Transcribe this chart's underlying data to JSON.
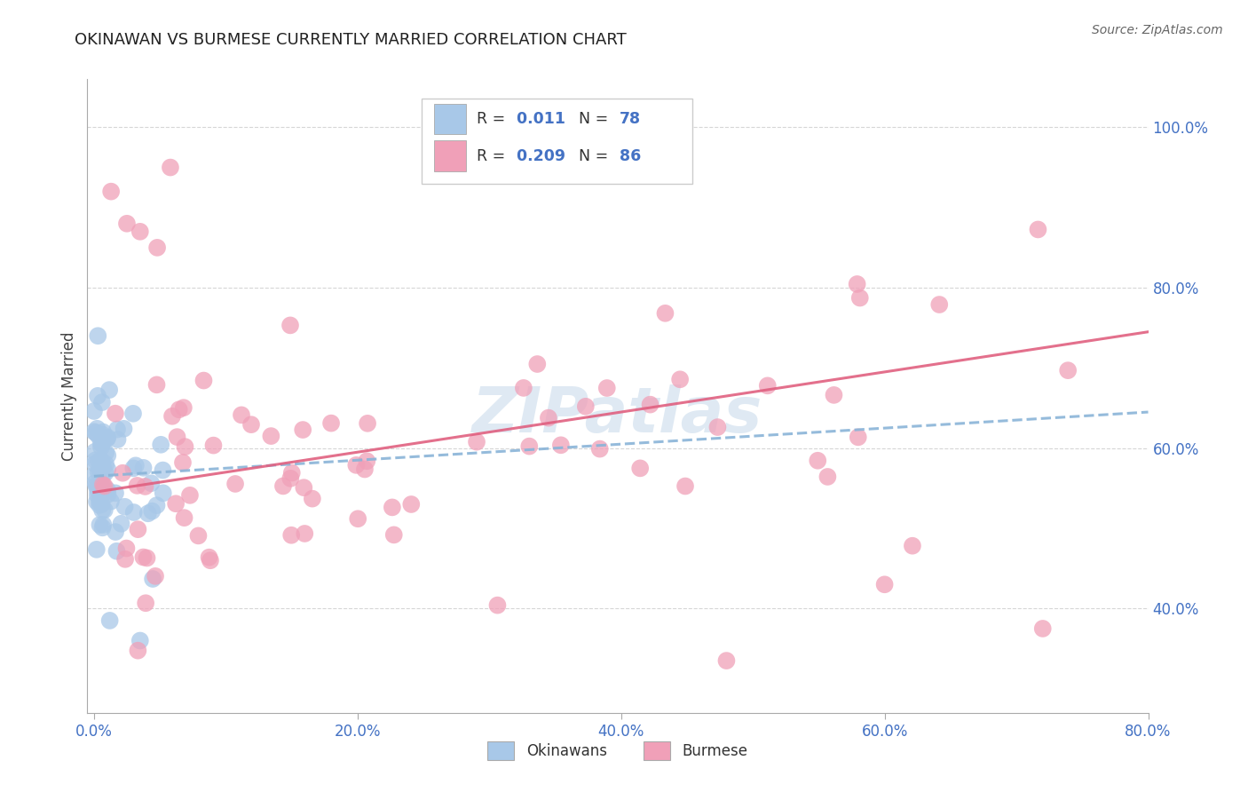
{
  "title": "OKINAWAN VS BURMESE CURRENTLY MARRIED CORRELATION CHART",
  "source": "Source: ZipAtlas.com",
  "ylabel_label": "Currently Married",
  "watermark": "ZIPatlas",
  "xlim": [
    -0.005,
    0.8
  ],
  "ylim": [
    0.27,
    1.06
  ],
  "xticks": [
    0.0,
    0.2,
    0.4,
    0.6,
    0.8
  ],
  "xtick_labels": [
    "0.0%",
    "20.0%",
    "40.0%",
    "60.0%",
    "80.0%"
  ],
  "ytick_values": [
    0.4,
    0.6,
    0.8,
    1.0
  ],
  "ytick_labels": [
    "40.0%",
    "60.0%",
    "80.0%",
    "100.0%"
  ],
  "okinawan_color": "#a8c8e8",
  "burmese_color": "#f0a0b8",
  "okinawan_line_color": "#8ab4d8",
  "burmese_line_color": "#e06080",
  "background_color": "#ffffff",
  "grid_color": "#cccccc",
  "legend_r_ok": "0.011",
  "legend_n_ok": "78",
  "legend_r_bur": "0.209",
  "legend_n_bur": "86",
  "ok_trend_x": [
    0.0,
    0.8
  ],
  "ok_trend_y": [
    0.565,
    0.645
  ],
  "bur_trend_x": [
    0.0,
    0.8
  ],
  "bur_trend_y": [
    0.545,
    0.745
  ]
}
